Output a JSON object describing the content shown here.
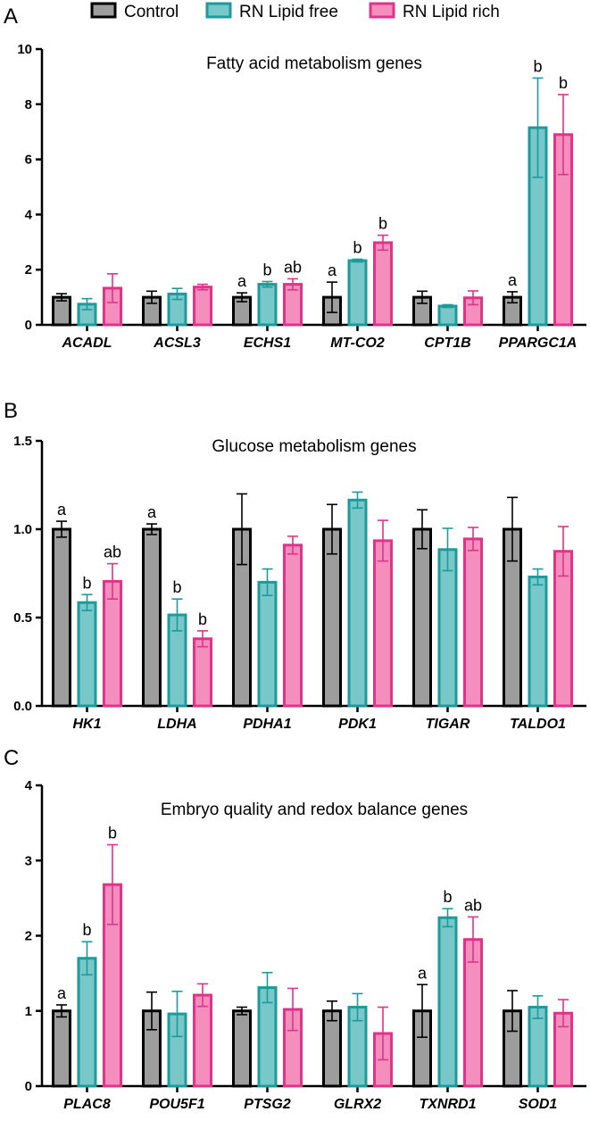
{
  "legend": [
    {
      "name": "Control",
      "fill": "#9d9d9d",
      "stroke": "#000000"
    },
    {
      "name": "RN Lipid free",
      "fill": "#78c7c9",
      "stroke": "#1c9a9c"
    },
    {
      "name": "RN Lipid rich",
      "fill": "#f38ebd",
      "stroke": "#e0338a"
    }
  ],
  "chart_data": [
    {
      "type": "bar",
      "panel_label": "A",
      "title": "Fatty acid metabolism genes",
      "ylim": [
        0,
        10
      ],
      "yticks": [
        0,
        2,
        4,
        6,
        8,
        10
      ],
      "ytick_labels": [
        "0",
        "2",
        "4",
        "6",
        "8",
        "10"
      ],
      "categories": [
        "ACADL",
        "ACSL3",
        "ECHS1",
        "MT-CO2",
        "CPT1B",
        "PPARGC1A"
      ],
      "series": [
        {
          "name": "Control",
          "values": [
            1.0,
            1.0,
            1.0,
            1.0,
            1.0,
            1.0
          ],
          "errors": [
            0.13,
            0.22,
            0.16,
            0.55,
            0.22,
            0.2
          ],
          "labels": [
            "",
            "",
            "a",
            "a",
            "",
            "a"
          ]
        },
        {
          "name": "RN Lipid free",
          "values": [
            0.75,
            1.12,
            1.47,
            2.33,
            0.68,
            7.15
          ],
          "errors": [
            0.2,
            0.2,
            0.1,
            0.05,
            0.05,
            1.8
          ],
          "labels": [
            "",
            "",
            "b",
            "b",
            "",
            "b"
          ]
        },
        {
          "name": "RN Lipid rich",
          "values": [
            1.33,
            1.37,
            1.47,
            2.98,
            0.98,
            6.9
          ],
          "errors": [
            0.52,
            0.1,
            0.2,
            0.27,
            0.25,
            1.45
          ],
          "labels": [
            "",
            "",
            "ab",
            "b",
            "",
            "b"
          ]
        }
      ]
    },
    {
      "type": "bar",
      "panel_label": "B",
      "title": "Glucose metabolism genes",
      "ylim": [
        0,
        1.5
      ],
      "yticks": [
        0,
        0.5,
        1.0,
        1.5
      ],
      "ytick_labels": [
        "0.0",
        "0.5",
        "1.0",
        "1.5"
      ],
      "categories": [
        "HK1",
        "LDHA",
        "PDHA1",
        "PDK1",
        "TIGAR",
        "TALDO1"
      ],
      "series": [
        {
          "name": "Control",
          "values": [
            1.0,
            1.0,
            1.0,
            1.0,
            1.0,
            1.0
          ],
          "errors": [
            0.045,
            0.03,
            0.2,
            0.14,
            0.11,
            0.18
          ],
          "labels": [
            "a",
            "a",
            "",
            "",
            "",
            ""
          ]
        },
        {
          "name": "RN Lipid free",
          "values": [
            0.585,
            0.515,
            0.7,
            1.165,
            0.885,
            0.73
          ],
          "errors": [
            0.045,
            0.09,
            0.075,
            0.045,
            0.12,
            0.045
          ],
          "labels": [
            "b",
            "b",
            "",
            "",
            "",
            ""
          ]
        },
        {
          "name": "RN Lipid rich",
          "values": [
            0.705,
            0.38,
            0.91,
            0.935,
            0.945,
            0.875
          ],
          "errors": [
            0.1,
            0.045,
            0.05,
            0.115,
            0.065,
            0.14
          ],
          "labels": [
            "ab",
            "b",
            "",
            "",
            "",
            ""
          ]
        }
      ]
    },
    {
      "type": "bar",
      "panel_label": "C",
      "title": "Embryo quality and redox balance genes",
      "ylim": [
        0,
        4
      ],
      "yticks": [
        0,
        1,
        2,
        3,
        4
      ],
      "ytick_labels": [
        "0",
        "1",
        "2",
        "3",
        "4"
      ],
      "categories": [
        "PLAC8",
        "POU5F1",
        "PTSG2",
        "GLRX2",
        "TXNRD1",
        "SOD1"
      ],
      "series": [
        {
          "name": "Control",
          "values": [
            1.0,
            1.0,
            1.0,
            1.0,
            1.0,
            1.0
          ],
          "errors": [
            0.08,
            0.25,
            0.05,
            0.13,
            0.35,
            0.27
          ],
          "labels": [
            "a",
            "",
            "",
            "",
            "a",
            ""
          ]
        },
        {
          "name": "RN Lipid free",
          "values": [
            1.7,
            0.96,
            1.31,
            1.05,
            2.24,
            1.05
          ],
          "errors": [
            0.22,
            0.3,
            0.2,
            0.18,
            0.12,
            0.15
          ],
          "labels": [
            "b",
            "",
            "",
            "",
            "b",
            ""
          ]
        },
        {
          "name": "RN Lipid rich",
          "values": [
            2.68,
            1.21,
            1.02,
            0.7,
            1.95,
            0.97
          ],
          "errors": [
            0.53,
            0.15,
            0.28,
            0.35,
            0.3,
            0.18
          ],
          "labels": [
            "b",
            "",
            "",
            "",
            "ab",
            ""
          ]
        }
      ]
    }
  ]
}
